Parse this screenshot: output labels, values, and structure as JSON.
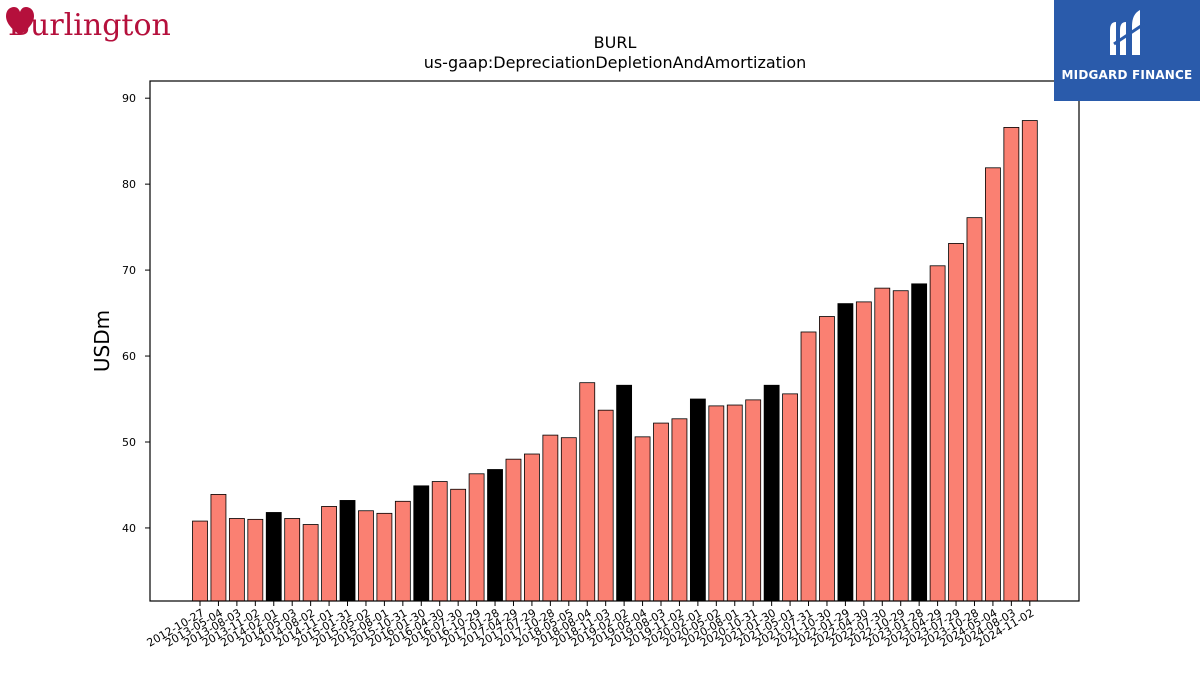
{
  "logos": {
    "left_brand": "Burlington",
    "right_brand": "MIDGARD FINANCE",
    "right_bg_color": "#2a5bab",
    "left_color": "#b5103c"
  },
  "chart_data": {
    "type": "bar",
    "title": "BURL",
    "subtitle": "us-gaap:DepreciationDepletionAndAmortization",
    "xlabel": "",
    "ylabel": "USDm",
    "ylim": [
      31.5,
      92.0
    ],
    "yticks": [
      40,
      50,
      60,
      70,
      80,
      90
    ],
    "grid": false,
    "colors": {
      "quarter": "#fa8072",
      "year_end": "#000000",
      "edge": "#000000"
    },
    "categories": [
      "2012-10-27",
      "2013-05-04",
      "2013-08-03",
      "2013-11-02",
      "2014-02-01",
      "2014-05-03",
      "2014-08-02",
      "2014-11-01",
      "2015-01-31",
      "2015-05-02",
      "2015-08-01",
      "2015-10-31",
      "2016-01-30",
      "2016-04-30",
      "2016-07-30",
      "2016-10-29",
      "2017-01-28",
      "2017-04-29",
      "2017-07-29",
      "2017-10-28",
      "2018-05-05",
      "2018-08-04",
      "2018-11-03",
      "2019-02-02",
      "2019-05-04",
      "2019-08-03",
      "2019-11-02",
      "2020-02-01",
      "2020-05-02",
      "2020-08-01",
      "2020-10-31",
      "2021-01-30",
      "2021-05-01",
      "2021-07-31",
      "2021-10-30",
      "2022-01-29",
      "2022-04-30",
      "2022-07-30",
      "2022-10-29",
      "2023-01-28",
      "2023-04-29",
      "2023-07-29",
      "2023-10-28",
      "2024-05-04",
      "2024-08-03",
      "2024-11-02"
    ],
    "values": [
      40.8,
      43.9,
      41.1,
      41.0,
      41.8,
      41.1,
      40.4,
      42.5,
      43.2,
      42.0,
      41.7,
      43.1,
      44.9,
      45.4,
      44.5,
      46.3,
      46.8,
      48.0,
      48.6,
      50.8,
      50.5,
      56.9,
      53.7,
      56.6,
      50.6,
      52.2,
      52.7,
      55.0,
      54.2,
      54.3,
      54.9,
      56.6,
      55.6,
      62.8,
      64.6,
      66.1,
      66.3,
      67.9,
      67.6,
      68.4,
      70.5,
      73.1,
      76.1,
      81.9,
      86.6,
      87.4
    ],
    "year_end": [
      false,
      false,
      false,
      false,
      true,
      false,
      false,
      false,
      true,
      false,
      false,
      false,
      true,
      false,
      false,
      false,
      true,
      false,
      false,
      false,
      false,
      false,
      false,
      true,
      false,
      false,
      false,
      true,
      false,
      false,
      false,
      true,
      false,
      false,
      false,
      true,
      false,
      false,
      false,
      true,
      false,
      false,
      false,
      false,
      false,
      false
    ]
  }
}
